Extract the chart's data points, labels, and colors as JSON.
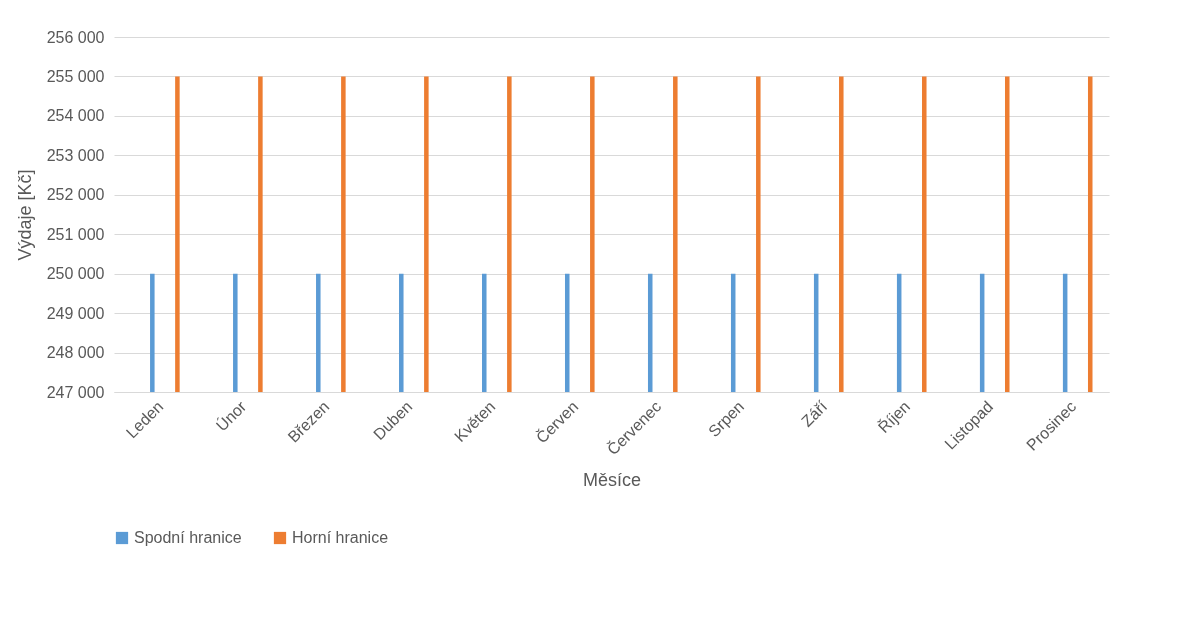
{
  "chart_data": {
    "type": "bar",
    "xlabel": "Měsíce",
    "ylabel": "Výdaje [Kč]",
    "categories": [
      "Leden",
      "Únor",
      "Březen",
      "Duben",
      "Květen",
      "Červen",
      "Červenec",
      "Srpen",
      "Září",
      "Říjen",
      "Listopad",
      "Prosinec"
    ],
    "series": [
      {
        "name": "Spodní hranice",
        "color": "#5b9bd5",
        "values": [
          250000,
          250000,
          250000,
          250000,
          250000,
          250000,
          250000,
          250000,
          250000,
          250000,
          250000,
          250000
        ]
      },
      {
        "name": "Horní hranice",
        "color": "#ed7d31",
        "values": [
          255000,
          255000,
          255000,
          255000,
          255000,
          255000,
          255000,
          255000,
          255000,
          255000,
          255000,
          255000
        ]
      }
    ],
    "ylim": [
      247000,
      256000
    ],
    "yticks": [
      {
        "value": 247000,
        "label": "247 000"
      },
      {
        "value": 248000,
        "label": "248 000"
      },
      {
        "value": 249000,
        "label": "249 000"
      },
      {
        "value": 250000,
        "label": "250 000"
      },
      {
        "value": 251000,
        "label": "251 000"
      },
      {
        "value": 252000,
        "label": "252 000"
      },
      {
        "value": 253000,
        "label": "253 000"
      },
      {
        "value": 254000,
        "label": "254 000"
      },
      {
        "value": 255000,
        "label": "255 000"
      },
      {
        "value": 256000,
        "label": "256 000"
      }
    ],
    "grid": "y",
    "legend": "bottom"
  }
}
